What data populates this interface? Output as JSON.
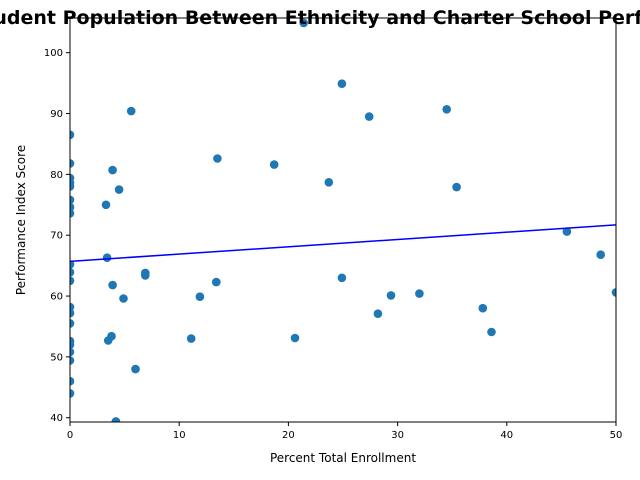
{
  "chart_data": {
    "type": "scatter",
    "title": "Hispanic Student Population Between Ethnicity and Charter School Performance Scores",
    "xlabel": "Percent Total Enrollment",
    "ylabel": "Performance Index Score",
    "xlim": [
      0,
      50
    ],
    "ylim": [
      39.3,
      105.7
    ],
    "xticks": [
      0,
      10,
      20,
      30,
      40,
      50
    ],
    "yticks": [
      40,
      50,
      60,
      70,
      80,
      90,
      100
    ],
    "grid": false,
    "colors": {
      "points": "#1f77b4",
      "trendline": "#0000ff"
    },
    "points": [
      {
        "x": 0,
        "y": 86.5
      },
      {
        "x": 0,
        "y": 81.8
      },
      {
        "x": 0,
        "y": 79.4
      },
      {
        "x": 0,
        "y": 78.6
      },
      {
        "x": 0,
        "y": 78.0
      },
      {
        "x": 0,
        "y": 75.8
      },
      {
        "x": 0,
        "y": 74.6
      },
      {
        "x": 0,
        "y": 73.6
      },
      {
        "x": 0,
        "y": 65.2
      },
      {
        "x": 0,
        "y": 63.9
      },
      {
        "x": 0,
        "y": 62.5
      },
      {
        "x": 0,
        "y": 58.2
      },
      {
        "x": 0,
        "y": 57.2
      },
      {
        "x": 0,
        "y": 55.5
      },
      {
        "x": 0,
        "y": 52.6
      },
      {
        "x": 0,
        "y": 52.0
      },
      {
        "x": 0,
        "y": 50.8
      },
      {
        "x": 0,
        "y": 49.4
      },
      {
        "x": 0,
        "y": 46.0
      },
      {
        "x": 0,
        "y": 44.0
      },
      {
        "x": 3.3,
        "y": 75.0
      },
      {
        "x": 3.4,
        "y": 66.3
      },
      {
        "x": 3.5,
        "y": 52.7
      },
      {
        "x": 3.8,
        "y": 53.4
      },
      {
        "x": 3.9,
        "y": 80.7
      },
      {
        "x": 3.9,
        "y": 61.8
      },
      {
        "x": 4.2,
        "y": 39.4
      },
      {
        "x": 4.5,
        "y": 77.5
      },
      {
        "x": 4.9,
        "y": 59.6
      },
      {
        "x": 5.6,
        "y": 90.4
      },
      {
        "x": 6.0,
        "y": 48.0
      },
      {
        "x": 6.9,
        "y": 63.8
      },
      {
        "x": 6.9,
        "y": 63.4
      },
      {
        "x": 11.1,
        "y": 53.0
      },
      {
        "x": 11.9,
        "y": 59.9
      },
      {
        "x": 13.4,
        "y": 62.3
      },
      {
        "x": 13.5,
        "y": 82.6
      },
      {
        "x": 18.7,
        "y": 81.6
      },
      {
        "x": 20.6,
        "y": 53.1
      },
      {
        "x": 21.4,
        "y": 104.9
      },
      {
        "x": 23.7,
        "y": 78.7
      },
      {
        "x": 24.9,
        "y": 94.9
      },
      {
        "x": 24.9,
        "y": 63.0
      },
      {
        "x": 27.4,
        "y": 89.5
      },
      {
        "x": 28.2,
        "y": 57.1
      },
      {
        "x": 29.4,
        "y": 60.1
      },
      {
        "x": 32.0,
        "y": 60.4
      },
      {
        "x": 34.5,
        "y": 90.7
      },
      {
        "x": 35.4,
        "y": 77.9
      },
      {
        "x": 37.8,
        "y": 58.0
      },
      {
        "x": 38.6,
        "y": 54.1
      },
      {
        "x": 45.5,
        "y": 70.6
      },
      {
        "x": 48.6,
        "y": 66.8
      },
      {
        "x": 50.0,
        "y": 60.6
      }
    ],
    "trendline": {
      "x": [
        0,
        50
      ],
      "y": [
        65.7,
        71.7
      ]
    }
  }
}
